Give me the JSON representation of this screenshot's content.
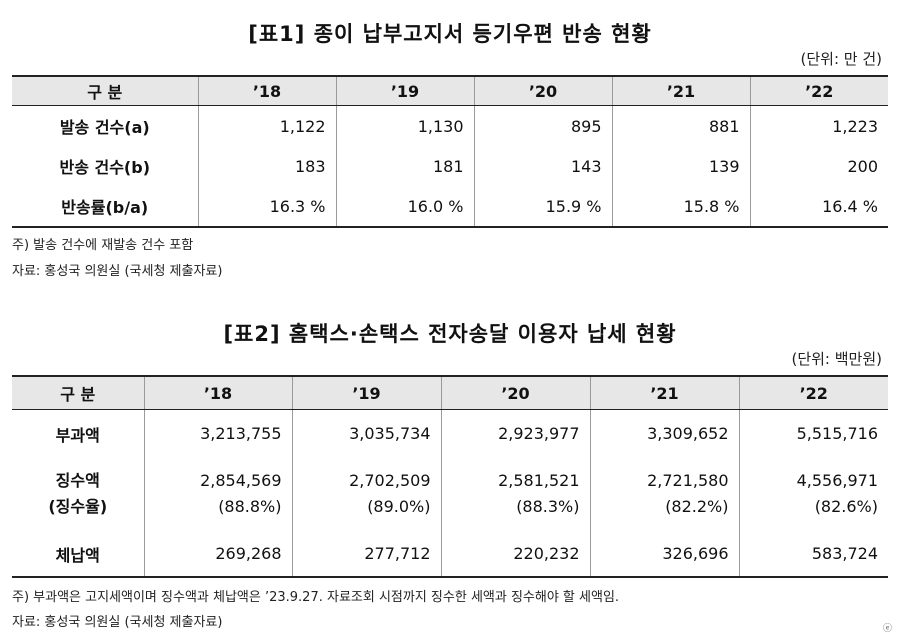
{
  "table1": {
    "title": "[표1] 종이 납부고지서 등기우편 반송 현황",
    "unit": "(단위: 만 건)",
    "header": [
      "구 분",
      "’18",
      "’19",
      "’20",
      "’21",
      "’22"
    ],
    "rows": [
      {
        "label": "발송 건수(a)",
        "values": [
          "1,122",
          "1,130",
          "895",
          "881",
          "1,223"
        ]
      },
      {
        "label": "반송 건수(b)",
        "values": [
          "183",
          "181",
          "143",
          "139",
          "200"
        ]
      },
      {
        "label": "반송률(b/a)",
        "values": [
          "16.3 %",
          "16.0 %",
          "15.9 %",
          "15.8 %",
          "16.4 %"
        ]
      }
    ],
    "notes": [
      "주) 발송 건수에 재발송 건수 포함",
      "자료: 홍성국 의원실 (국세청 제출자료)"
    ]
  },
  "table2": {
    "title": "[표2] 홈택스·손택스 전자송달 이용자 납세 현황",
    "unit": "(단위: 백만원)",
    "header": [
      "구 분",
      "’18",
      "’19",
      "’20",
      "’21",
      "’22"
    ],
    "row_tax": {
      "label": "부과액",
      "values": [
        "3,213,755",
        "3,035,734",
        "2,923,977",
        "3,309,652",
        "5,515,716"
      ]
    },
    "row_collect": {
      "label": "징수액",
      "sublabel": "(징수율)",
      "values": [
        "2,854,569",
        "2,702,509",
        "2,581,521",
        "2,721,580",
        "4,556,971"
      ],
      "rates": [
        "(88.8%)",
        "(89.0%)",
        "(88.3%)",
        "(82.2%)",
        "(82.6%)"
      ]
    },
    "row_arrears": {
      "label": "체납액",
      "values": [
        "269,268",
        "277,712",
        "220,232",
        "326,696",
        "583,724"
      ]
    },
    "notes": [
      "주) 부과액은 고지세액이며 징수액과 체납액은 ’23.9.27. 자료조회 시점까지 징수한 세액과 징수해야 할 세액임.",
      "자료: 홍성국 의원실 (국세청 제출자료)"
    ]
  },
  "corner_mark": "ⓔ"
}
